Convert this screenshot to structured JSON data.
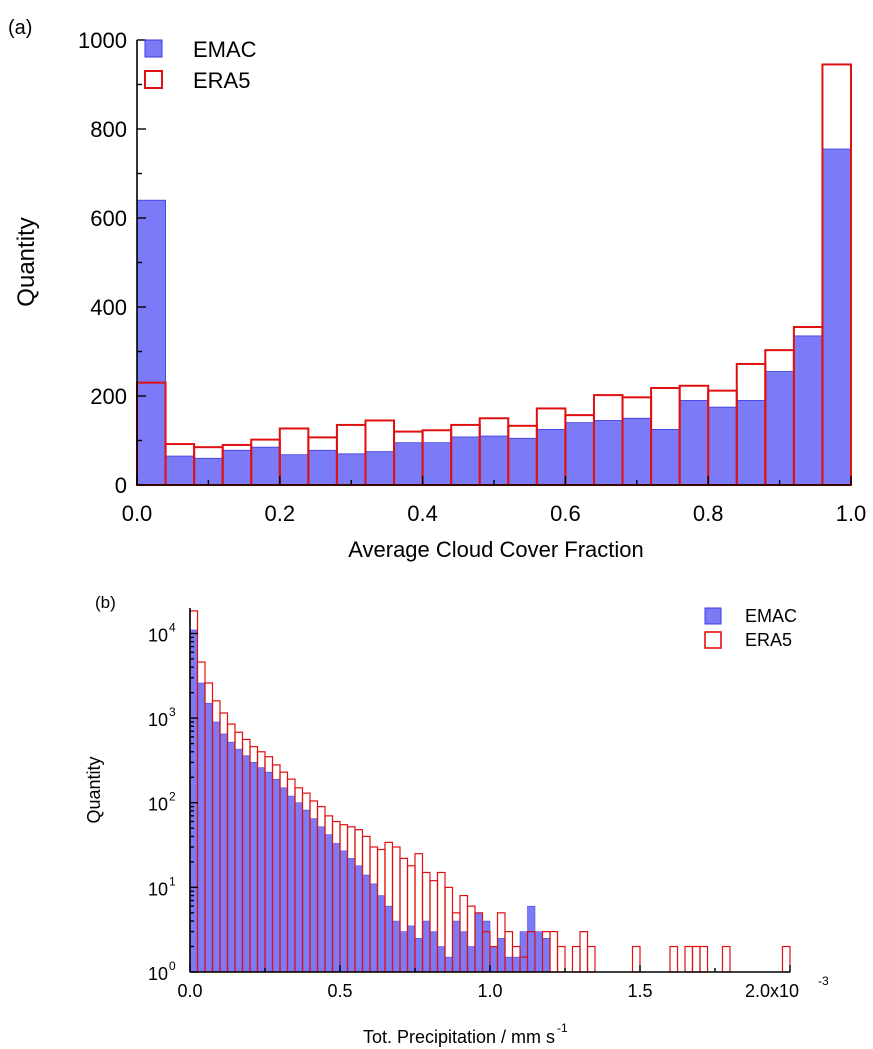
{
  "chart_data": [
    {
      "panel_label": "(a)",
      "type": "bar",
      "xlabel": "Average Cloud Cover Fraction",
      "ylabel": "Quantity",
      "xlim": [
        0.0,
        1.0
      ],
      "ylim": [
        0,
        1000
      ],
      "xticks": [
        "0.0",
        "0.2",
        "0.4",
        "0.6",
        "0.8",
        "1.0"
      ],
      "yticks": [
        "0",
        "200",
        "400",
        "600",
        "800",
        "1000"
      ],
      "legend_position": "top-left",
      "bin_width": 0.04,
      "x": [
        0.0,
        0.04,
        0.08,
        0.12,
        0.16,
        0.2,
        0.24,
        0.28,
        0.32,
        0.36,
        0.4,
        0.44,
        0.48,
        0.52,
        0.56,
        0.6,
        0.64,
        0.68,
        0.72,
        0.76,
        0.8,
        0.84,
        0.88,
        0.92,
        0.96
      ],
      "series": [
        {
          "name": "EMAC",
          "style": "filled",
          "color": "#7b7bf7",
          "edge": "#3a3ae0",
          "values": [
            640,
            65,
            60,
            78,
            85,
            68,
            78,
            70,
            75,
            95,
            95,
            108,
            110,
            105,
            125,
            140,
            145,
            150,
            125,
            190,
            175,
            190,
            255,
            335,
            755
          ]
        },
        {
          "name": "ERA5",
          "style": "outline",
          "color": "#e01010",
          "values": [
            230,
            92,
            85,
            90,
            102,
            127,
            107,
            135,
            145,
            120,
            123,
            135,
            150,
            133,
            172,
            157,
            202,
            197,
            218,
            223,
            212,
            272,
            303,
            355,
            945
          ]
        }
      ]
    },
    {
      "panel_label": "(b)",
      "type": "bar",
      "xlabel": "Tot. Precipitation / mm s",
      "xlabel_sup": "-1",
      "ylabel": "Quantity",
      "xlim": [
        0.0,
        0.002
      ],
      "yscale": "log",
      "ylim": [
        1,
        20000
      ],
      "xticks": [
        "0.0",
        "0.5",
        "1.0",
        "1.5"
      ],
      "xtick_last": "2.0x10",
      "xtick_last_sup": "-3",
      "ytick_base": "10",
      "ytick_exps": [
        "0",
        "1",
        "2",
        "3",
        "4"
      ],
      "legend_position": "top-right",
      "bin_width": 2.5e-05,
      "x_start": 0.0,
      "series": [
        {
          "name": "EMAC",
          "style": "filled",
          "color": "#7b7bf7",
          "edge": "#3a3ae0",
          "values": [
            11000,
            2600,
            1500,
            900,
            650,
            520,
            430,
            360,
            300,
            260,
            230,
            190,
            150,
            120,
            100,
            82,
            65,
            52,
            42,
            33,
            27,
            22,
            18,
            14,
            11,
            8,
            6,
            4,
            3,
            3.5,
            2.5,
            4,
            3,
            2,
            1.5,
            4,
            3,
            2,
            5,
            4,
            2,
            2.5,
            1.5,
            1.5,
            3,
            6,
            3,
            2.5,
            0,
            0,
            0,
            0,
            0,
            0,
            0,
            0,
            0,
            0,
            0,
            0,
            0,
            0,
            0,
            0,
            0,
            0,
            0,
            0,
            0,
            0,
            0,
            0,
            0,
            0,
            0,
            0,
            0,
            0,
            0,
            0
          ]
        },
        {
          "name": "ERA5",
          "style": "outline",
          "color": "#e01010",
          "values": [
            18500,
            4600,
            2600,
            1600,
            1150,
            850,
            680,
            560,
            460,
            400,
            350,
            280,
            230,
            190,
            150,
            130,
            105,
            90,
            70,
            60,
            55,
            52,
            48,
            40,
            30,
            28,
            34,
            30,
            22,
            18,
            25,
            15,
            12,
            15,
            10,
            5,
            8,
            6,
            5,
            3,
            2,
            5,
            3,
            2,
            1.5,
            3,
            1,
            3,
            3,
            2,
            1,
            2,
            3,
            2,
            1,
            1,
            0,
            0,
            1,
            2,
            1,
            1,
            0,
            0,
            2,
            1,
            2,
            2,
            2,
            0,
            0,
            2,
            0,
            0,
            0,
            0,
            0,
            0,
            0,
            2
          ]
        }
      ]
    }
  ]
}
